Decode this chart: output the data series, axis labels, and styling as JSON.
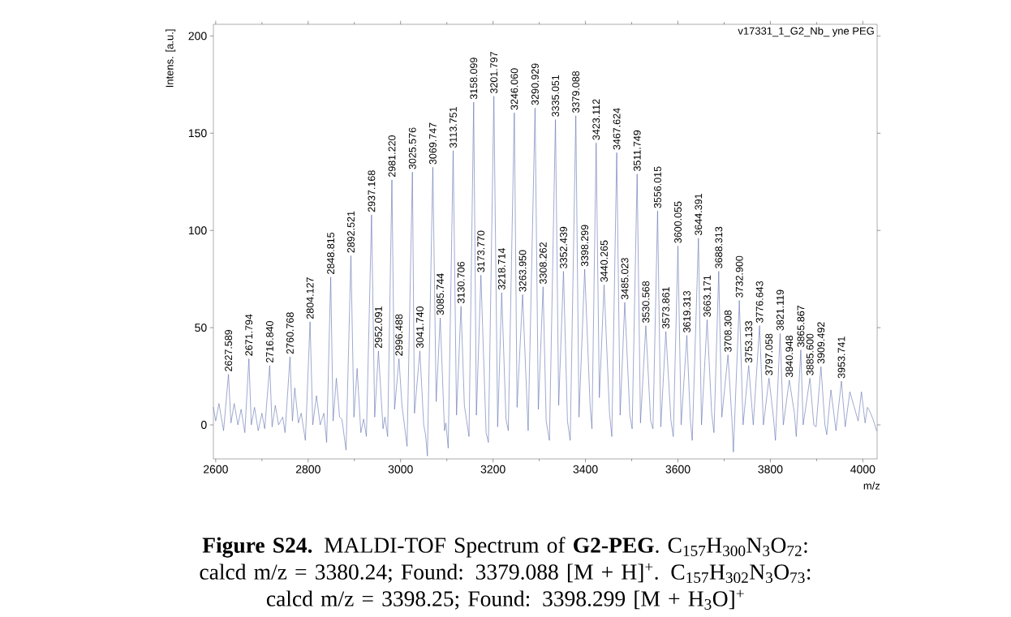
{
  "chart_data": {
    "type": "line",
    "title": "**Figure S24.** MALDI-TOF Spectrum of **G2-PEG**. C$_{157}$H$_{300}$N$_{3}$O$_{72}$: calcd m/z = 3380.24; Found: 3379.088 [M + H]$^{+}$. C$_{157}$H$_{302}$N$_{3}$O$_{73}$: calcd m/z = 3398.25; Found: 3398.299 [M + H$_{3}$O]$^{+}$",
    "xlabel": "m/z",
    "ylabel": "Intens. [a.u.]",
    "color": "#6070b0",
    "xlim": [
      2595,
      4031
    ],
    "ylim": [
      -17.5,
      206
    ],
    "xticks": [
      2600,
      2800,
      3000,
      3200,
      3400,
      3600,
      3800,
      4000
    ],
    "yticks": [
      0,
      50,
      100,
      150,
      200
    ],
    "x": [
      2595,
      2600,
      2607,
      2617,
      2627.589,
      2633,
      2640,
      2648,
      2655,
      2663,
      2671.794,
      2677,
      2684,
      2692,
      2700,
      2706,
      2716.84,
      2722,
      2729,
      2736,
      2745,
      2750,
      2760.768,
      2766,
      2771,
      2779,
      2785,
      2794,
      2804.127,
      2810,
      2818,
      2826,
      2834,
      2840,
      2848.815,
      2854,
      2861,
      2868,
      2873,
      2882,
      2892.521,
      2899,
      2906,
      2914,
      2920,
      2926,
      2937.168,
      2944,
      2952.091,
      2962,
      2966,
      2972,
      2981.22,
      2987,
      2996.488,
      3003,
      3014,
      3025.576,
      3030,
      3041.74,
      3050,
      3054,
      3058,
      3069.747,
      3077,
      3085.744,
      3095,
      3098,
      3103,
      3113.751,
      3121,
      3130.706,
      3138,
      3148,
      3158.099,
      3164,
      3173.77,
      3185,
      3190,
      3201.797,
      3210,
      3218.714,
      3228,
      3233,
      3246.06,
      3252,
      3263.95,
      3276,
      3290.929,
      3298,
      3308.262,
      3315,
      3322,
      3335.051,
      3342,
      3352.439,
      3361,
      3367,
      3379.088,
      3386,
      3398.299,
      3410,
      3414,
      3423.112,
      3430,
      3440.265,
      3452,
      3457,
      3467.624,
      3475,
      3485.023,
      3496,
      3501,
      3511.749,
      3519,
      3530.568,
      3541,
      3546,
      3556.015,
      3563,
      3573.861,
      3585,
      3590,
      3600.055,
      3607,
      3619.313,
      3627,
      3631,
      3644.391,
      3651,
      3663.171,
      3673,
      3678,
      3688.313,
      3695,
      3708.308,
      3717,
      3720,
      3732.9,
      3741,
      3753.133,
      3763,
      3776.643,
      3785,
      3797.058,
      3807,
      3811,
      3821.119,
      3828,
      3840.948,
      3852,
      3856,
      3865.867,
      3871,
      3885.6,
      3894,
      3899,
      3909.492,
      3918,
      3922,
      3931,
      3942,
      3953.741,
      3962,
      3972,
      3990,
      3997,
      4005,
      4010,
      4015,
      4022,
      4030
    ],
    "values": [
      9,
      2,
      11,
      -3,
      26,
      1,
      11,
      0,
      8,
      -4,
      34,
      0,
      9,
      -3,
      6,
      -2,
      30.5,
      -1,
      10,
      0,
      4,
      -4,
      35,
      2,
      19,
      1,
      6,
      -8,
      53,
      0,
      15,
      0,
      6,
      -9,
      76,
      2,
      24,
      4,
      3,
      -13,
      87,
      4,
      29,
      -4,
      3,
      -6,
      108,
      4,
      38,
      -2,
      4,
      -6,
      126,
      8,
      34,
      10,
      -11,
      130,
      6,
      38,
      0,
      -5,
      -16,
      132.5,
      12,
      55,
      -3,
      1,
      -12,
      141,
      5,
      61,
      10,
      -6,
      166,
      5,
      77,
      -4,
      -9,
      169,
      -1,
      68,
      3,
      -3,
      160.5,
      9,
      67,
      -3,
      163,
      8,
      71,
      2,
      -8,
      157,
      10,
      79,
      2,
      -8,
      159,
      4,
      80,
      10,
      -2,
      145,
      14,
      72,
      6,
      -6,
      140,
      5,
      63,
      5,
      -2,
      129,
      1,
      51,
      2,
      -2,
      110,
      -1,
      48,
      2,
      -6,
      92,
      0,
      46,
      2,
      -8,
      96,
      0,
      54,
      6,
      -4,
      79,
      4,
      36,
      2,
      -14,
      64,
      0,
      30.5,
      0,
      51,
      0,
      24,
      3,
      -8,
      47,
      0,
      23,
      6,
      -6,
      38.5,
      0,
      24,
      0,
      -1,
      30,
      0,
      -5,
      18,
      -3,
      22.5,
      -1,
      17,
      2,
      17,
      1,
      9,
      7,
      3,
      -3
    ],
    "annotations": [
      "v17331_1_G2_Nb_ yne PEG",
      {
        "text": "2627.589",
        "x": 2627.589,
        "y": 26
      },
      {
        "text": "2671.794",
        "x": 2671.794,
        "y": 34
      },
      {
        "text": "2716.840",
        "x": 2716.84,
        "y": 30.5
      },
      {
        "text": "2760.768",
        "x": 2760.768,
        "y": 35
      },
      {
        "text": "2804.127",
        "x": 2804.127,
        "y": 53
      },
      {
        "text": "2848.815",
        "x": 2848.815,
        "y": 76
      },
      {
        "text": "2892.521",
        "x": 2892.521,
        "y": 87
      },
      {
        "text": "2937.168",
        "x": 2937.168,
        "y": 108
      },
      {
        "text": "2952.091",
        "x": 2952.091,
        "y": 38
      },
      {
        "text": "2981.220",
        "x": 2981.22,
        "y": 126
      },
      {
        "text": "2996.488",
        "x": 2996.488,
        "y": 34
      },
      {
        "text": "3025.576",
        "x": 3025.576,
        "y": 130
      },
      {
        "text": "3041.740",
        "x": 3041.74,
        "y": 38
      },
      {
        "text": "3069.747",
        "x": 3069.747,
        "y": 132.5
      },
      {
        "text": "3085.744",
        "x": 3085.744,
        "y": 55
      },
      {
        "text": "3113.751",
        "x": 3113.751,
        "y": 141
      },
      {
        "text": "3130.706",
        "x": 3130.706,
        "y": 61
      },
      {
        "text": "3158.099",
        "x": 3158.099,
        "y": 166
      },
      {
        "text": "3173.770",
        "x": 3173.77,
        "y": 77
      },
      {
        "text": "3201.797",
        "x": 3201.797,
        "y": 169
      },
      {
        "text": "3218.714",
        "x": 3218.714,
        "y": 68
      },
      {
        "text": "3246.060",
        "x": 3246.06,
        "y": 160.5
      },
      {
        "text": "3263.950",
        "x": 3263.95,
        "y": 67
      },
      {
        "text": "3290.929",
        "x": 3290.929,
        "y": 163
      },
      {
        "text": "3308.262",
        "x": 3308.262,
        "y": 71
      },
      {
        "text": "3335.051",
        "x": 3335.051,
        "y": 157
      },
      {
        "text": "3352.439",
        "x": 3352.439,
        "y": 79
      },
      {
        "text": "3379.088",
        "x": 3379.088,
        "y": 159
      },
      {
        "text": "3398.299",
        "x": 3398.299,
        "y": 80
      },
      {
        "text": "3423.112",
        "x": 3423.112,
        "y": 145
      },
      {
        "text": "3440.265",
        "x": 3440.265,
        "y": 72
      },
      {
        "text": "3467.624",
        "x": 3467.624,
        "y": 140
      },
      {
        "text": "3485.023",
        "x": 3485.023,
        "y": 63
      },
      {
        "text": "3511.749",
        "x": 3511.749,
        "y": 129
      },
      {
        "text": "3530.568",
        "x": 3530.568,
        "y": 51
      },
      {
        "text": "3556.015",
        "x": 3556.015,
        "y": 110
      },
      {
        "text": "3573.861",
        "x": 3573.861,
        "y": 48
      },
      {
        "text": "3600.055",
        "x": 3600.055,
        "y": 92
      },
      {
        "text": "3619.313",
        "x": 3619.313,
        "y": 46
      },
      {
        "text": "3644.391",
        "x": 3644.391,
        "y": 96
      },
      {
        "text": "3663.171",
        "x": 3663.171,
        "y": 54
      },
      {
        "text": "3688.313",
        "x": 3688.313,
        "y": 79
      },
      {
        "text": "3708.308",
        "x": 3708.308,
        "y": 36
      },
      {
        "text": "3732.900",
        "x": 3732.9,
        "y": 64
      },
      {
        "text": "3753.133",
        "x": 3753.133,
        "y": 30.5
      },
      {
        "text": "3776.643",
        "x": 3776.643,
        "y": 51
      },
      {
        "text": "3797.058",
        "x": 3797.058,
        "y": 24
      },
      {
        "text": "3821.119",
        "x": 3821.119,
        "y": 47
      },
      {
        "text": "3840.948",
        "x": 3840.948,
        "y": 23
      },
      {
        "text": "3865.867",
        "x": 3865.867,
        "y": 38.5
      },
      {
        "text": "3885.600",
        "x": 3885.6,
        "y": 24
      },
      {
        "text": "3909.492",
        "x": 3909.492,
        "y": 30
      },
      {
        "text": "3953.741",
        "x": 3953.741,
        "y": 22.5
      }
    ]
  }
}
